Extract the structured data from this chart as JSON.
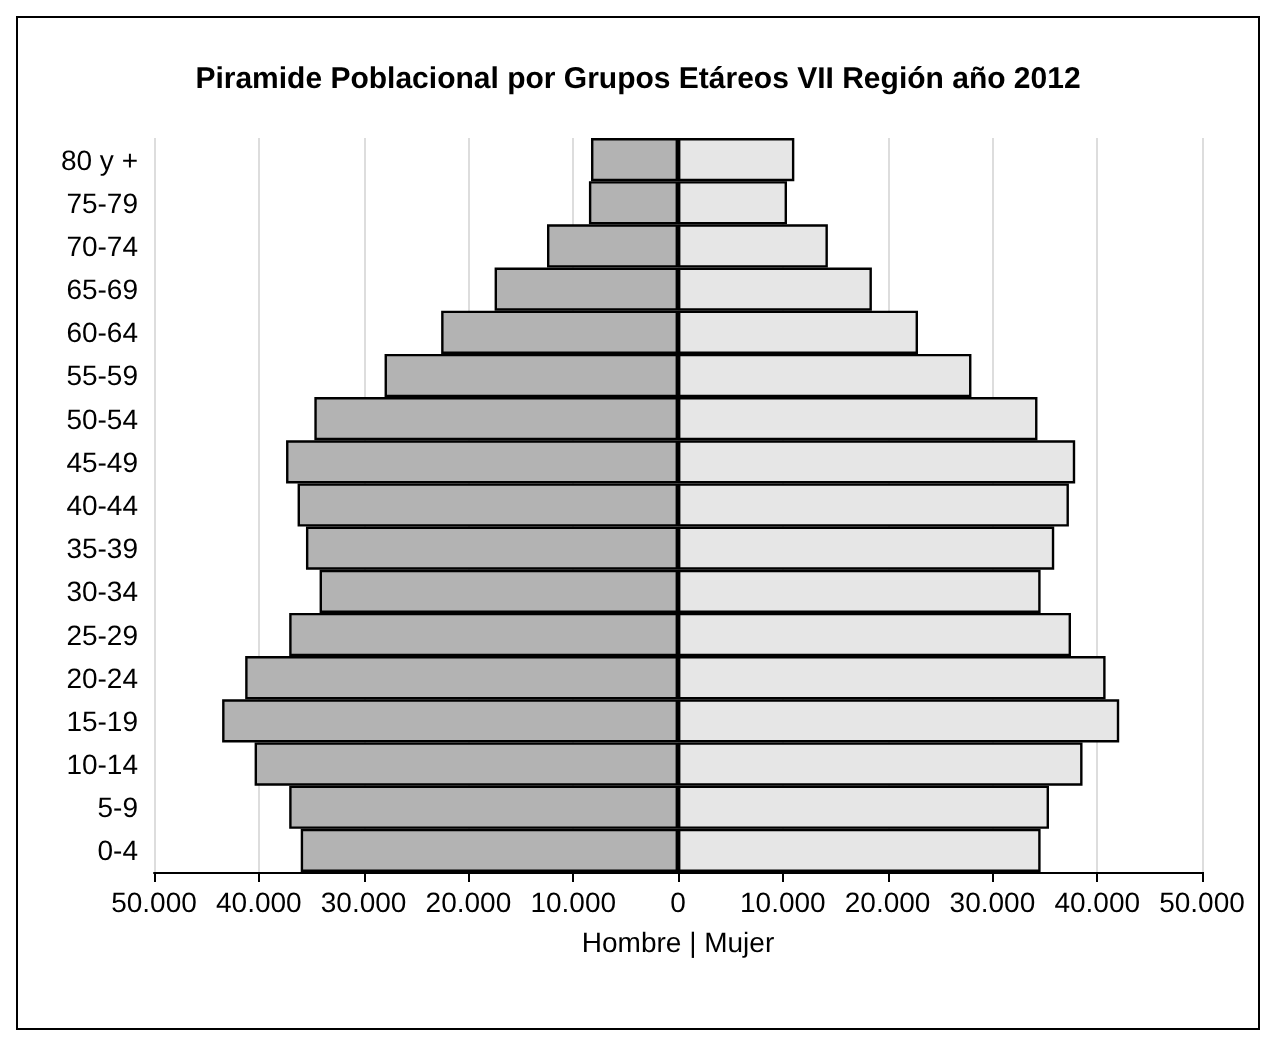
{
  "chart_data": {
    "type": "bar",
    "orientation": "horizontal",
    "title": "Piramide Poblacional por Grupos Etáreos VII Región año 2012",
    "xlabel": "Hombre | Mujer",
    "categories": [
      "80 y +",
      "75-79",
      "70-74",
      "65-69",
      "60-64",
      "55-59",
      "50-54",
      "45-49",
      "40-44",
      "35-39",
      "30-34",
      "25-29",
      "20-24",
      "15-19",
      "10-14",
      "5-9",
      "0-4"
    ],
    "series": [
      {
        "color": "#b3b3b3",
        "values": [
          -8300,
          -8500,
          -12500,
          -17500,
          -22600,
          -28000,
          -34700,
          -37400,
          -36300,
          -35500,
          -34200,
          -37100,
          -41300,
          -43500,
          -40400,
          -37100,
          -36000
        ]
      },
      {
        "color": "#e6e6e6",
        "values": [
          11100,
          10400,
          14300,
          18500,
          22900,
          28000,
          34300,
          37900,
          37300,
          35900,
          34600,
          37500,
          40800,
          42100,
          38600,
          35400,
          34600
        ]
      }
    ],
    "xlim": [
      -50000,
      50000
    ],
    "xticks": [
      {
        "value": -50000,
        "label": "50.000"
      },
      {
        "value": -40000,
        "label": "40.000"
      },
      {
        "value": -30000,
        "label": "30.000"
      },
      {
        "value": -20000,
        "label": "20.000"
      },
      {
        "value": -10000,
        "label": "10.000"
      },
      {
        "value": 0,
        "label": "0"
      },
      {
        "value": 10000,
        "label": "10.000"
      },
      {
        "value": 20000,
        "label": "20.000"
      },
      {
        "value": 30000,
        "label": "30.000"
      },
      {
        "value": 40000,
        "label": "40.000"
      },
      {
        "value": 50000,
        "label": "50.000"
      }
    ],
    "grid": "x",
    "stacked": true
  }
}
